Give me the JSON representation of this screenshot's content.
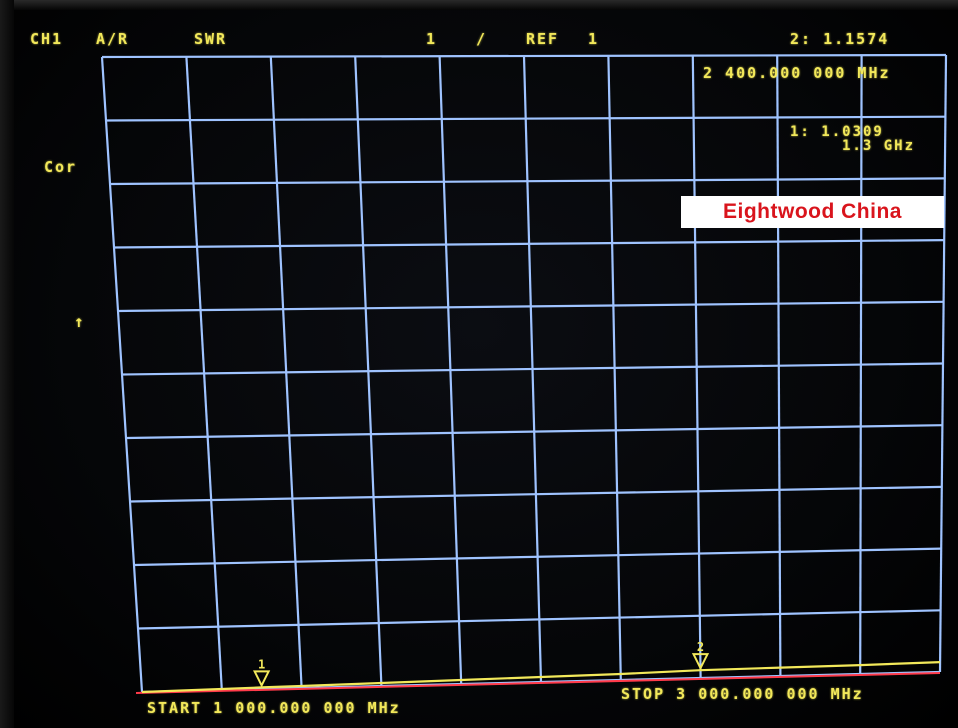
{
  "header": {
    "channel": "CH1",
    "measurement": "A/R",
    "format": "SWR",
    "scale": "1",
    "scale_unit": "/",
    "ref_label": "REF",
    "ref_value": "1",
    "marker2_value": "2: 1.1574"
  },
  "markers": {
    "marker2_freq": "2 400.000 000 MHz",
    "marker1_value": "1: 1.0309",
    "marker1_freq": "1.3 GHz"
  },
  "side": {
    "cor_label": "Cor",
    "ref_arrow": "↑"
  },
  "footer": {
    "start": "START 1 000.000 000 MHz",
    "stop": "STOP 3 000.000 000 MHz"
  },
  "watermark": "Eightwood China",
  "colors": {
    "background": "#000000",
    "grid": "#9fc3ff",
    "annotation_text": "#f2e85a",
    "trace": "#f2e85a",
    "reference_line": "#ff3a4a",
    "watermark_text": "#d9141c",
    "watermark_bg": "#ffffff"
  },
  "chart_data": {
    "type": "line",
    "x_unit": "MHz",
    "x": [
      1000,
      1200,
      1300,
      1400,
      1600,
      1800,
      2000,
      2200,
      2400,
      2600,
      2800,
      3000
    ],
    "y": [
      1.0,
      1.02,
      1.0309,
      1.04,
      1.06,
      1.08,
      1.1,
      1.12,
      1.1574,
      1.17,
      1.18,
      1.2
    ],
    "reference_value": 1,
    "markers": [
      {
        "id": "1",
        "x": 1300,
        "y": 1.0309
      },
      {
        "id": "2",
        "x": 2400,
        "y": 1.1574
      }
    ]
  }
}
